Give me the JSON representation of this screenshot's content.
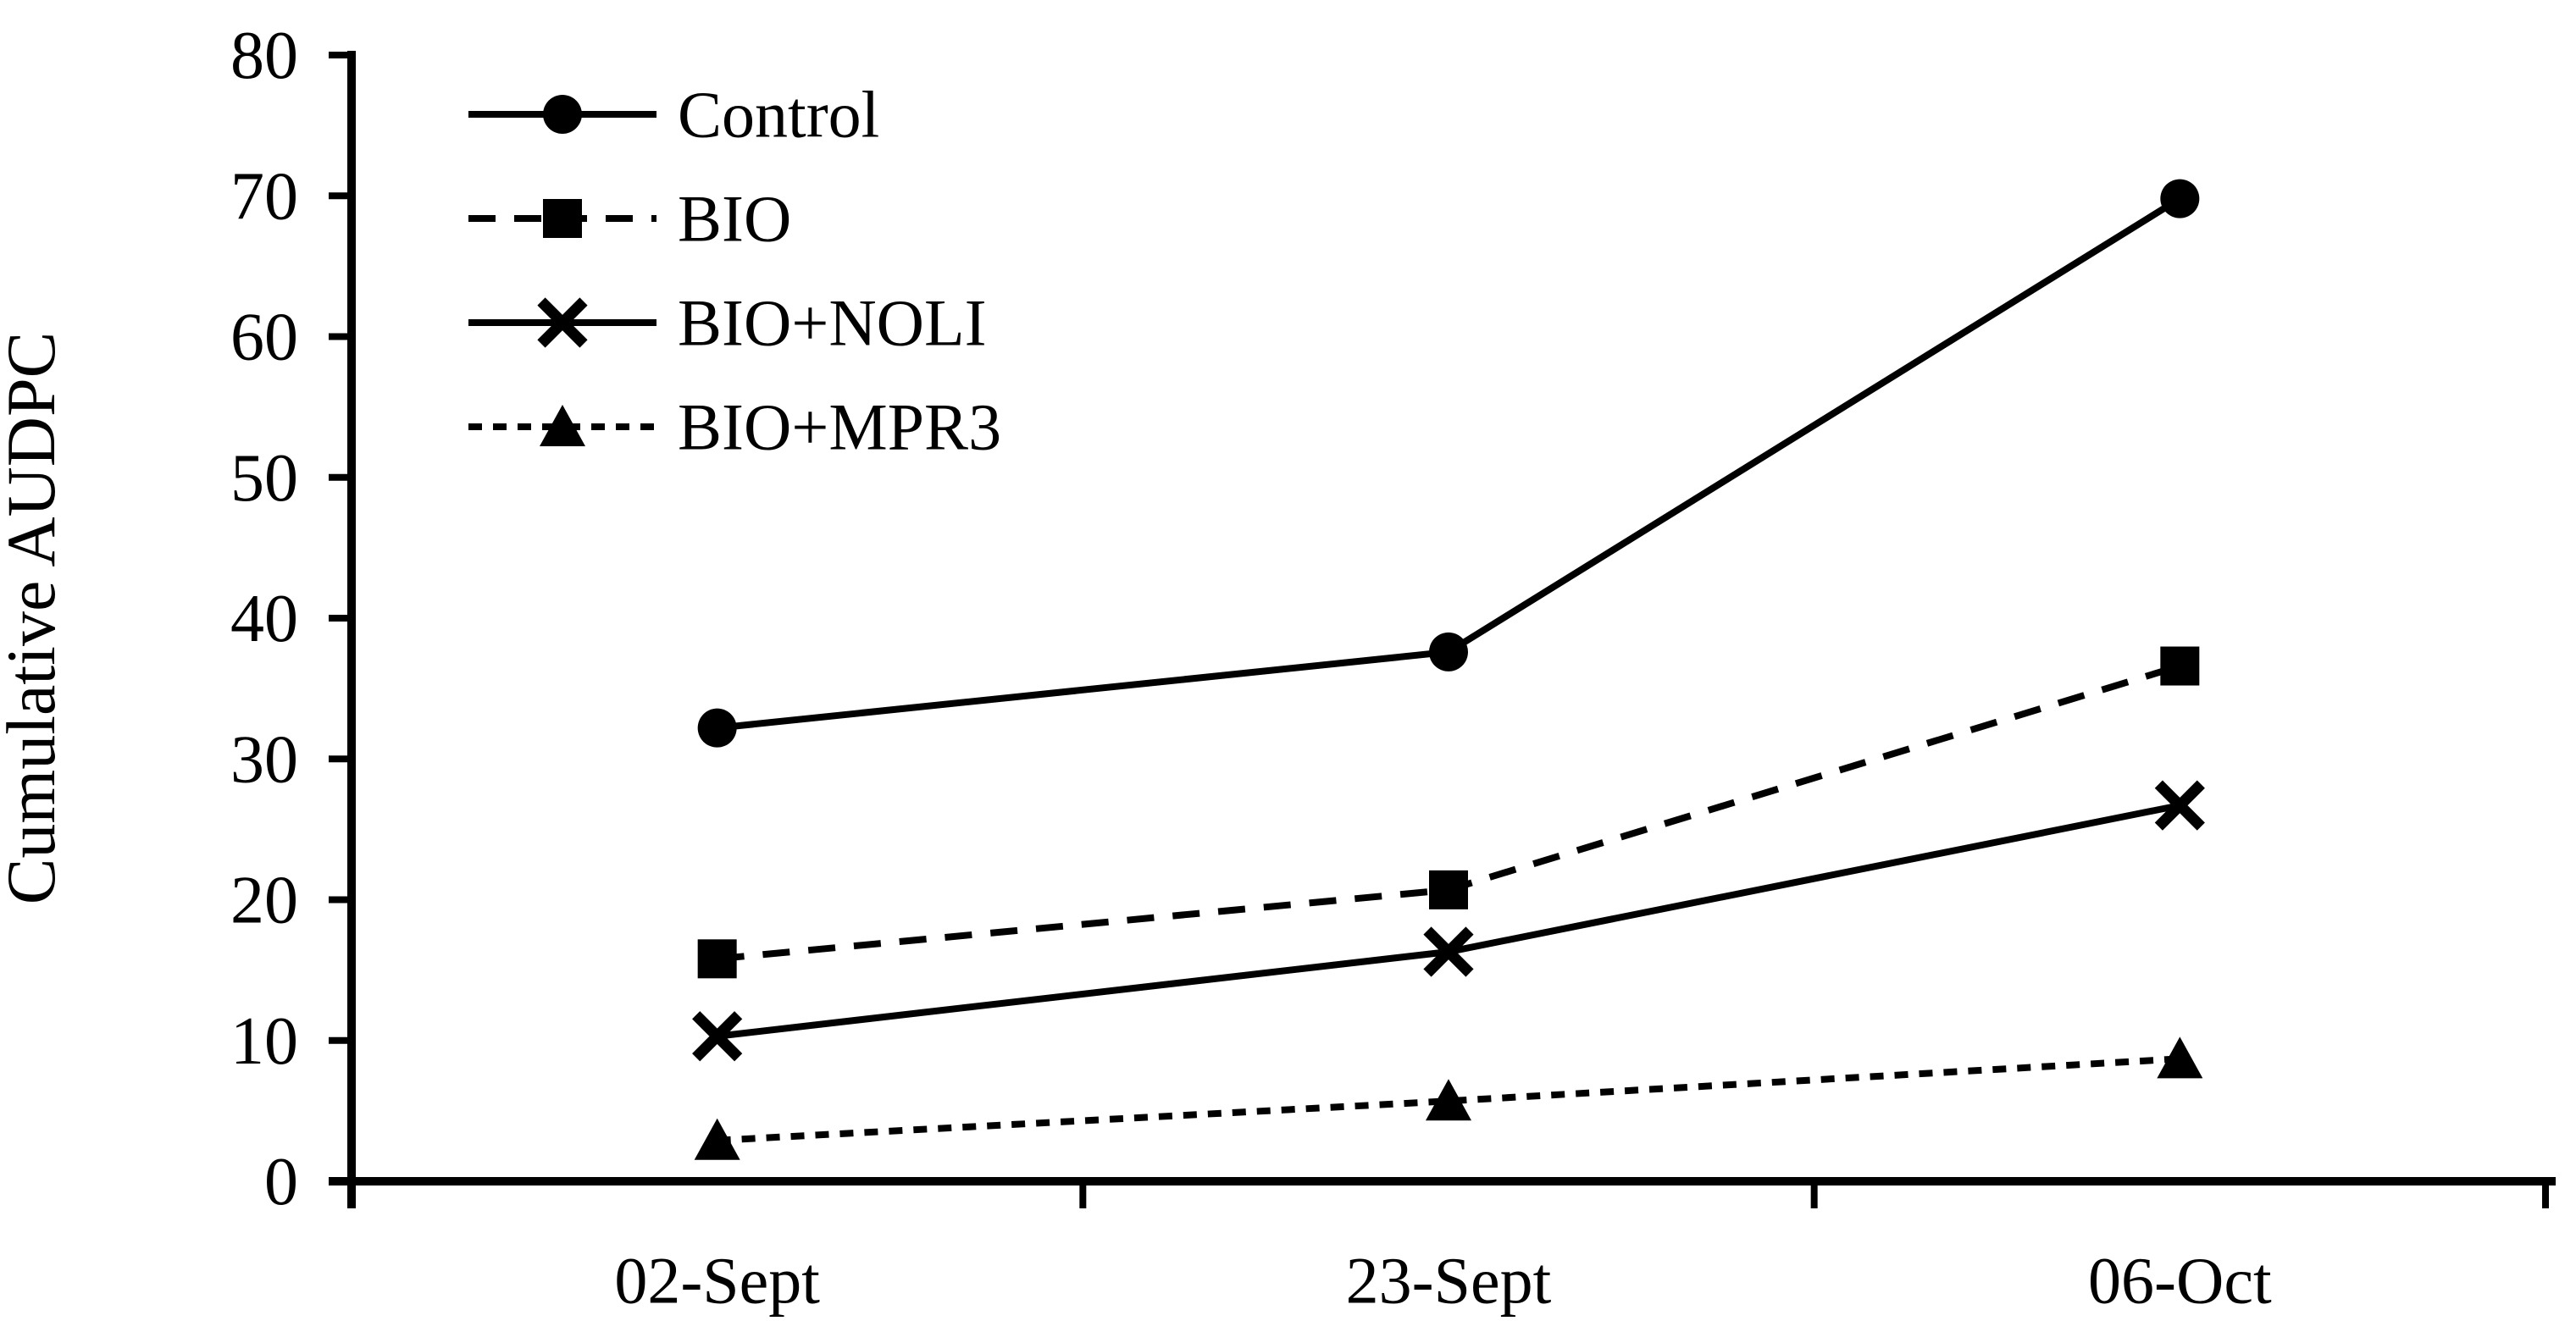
{
  "chart_data": {
    "type": "line",
    "title": "",
    "xlabel": "",
    "ylabel": "Cumulative AUDPC",
    "categories": [
      "02-Sept",
      "23-Sept",
      "06-Oct"
    ],
    "series": [
      {
        "name": "Control",
        "marker": "circle",
        "line": "solid",
        "values": [
          32.2,
          37.6,
          69.8
        ]
      },
      {
        "name": "BIO",
        "marker": "square",
        "line": "dashed",
        "values": [
          15.8,
          20.7,
          36.6
        ]
      },
      {
        "name": "BIO+NOLI",
        "marker": "x",
        "line": "solid",
        "values": [
          10.3,
          16.3,
          26.7
        ]
      },
      {
        "name": "BIO+MPR3",
        "marker": "triangle",
        "line": "fine-dashed",
        "values": [
          2.9,
          5.7,
          8.7
        ]
      }
    ],
    "ylim": [
      0,
      80
    ],
    "yticks": [
      0,
      10,
      20,
      30,
      40,
      50,
      60,
      70,
      80
    ],
    "ytick_step": 10,
    "grid": false,
    "legend_position": "top-left",
    "color": "#000000",
    "background": "#ffffff"
  }
}
